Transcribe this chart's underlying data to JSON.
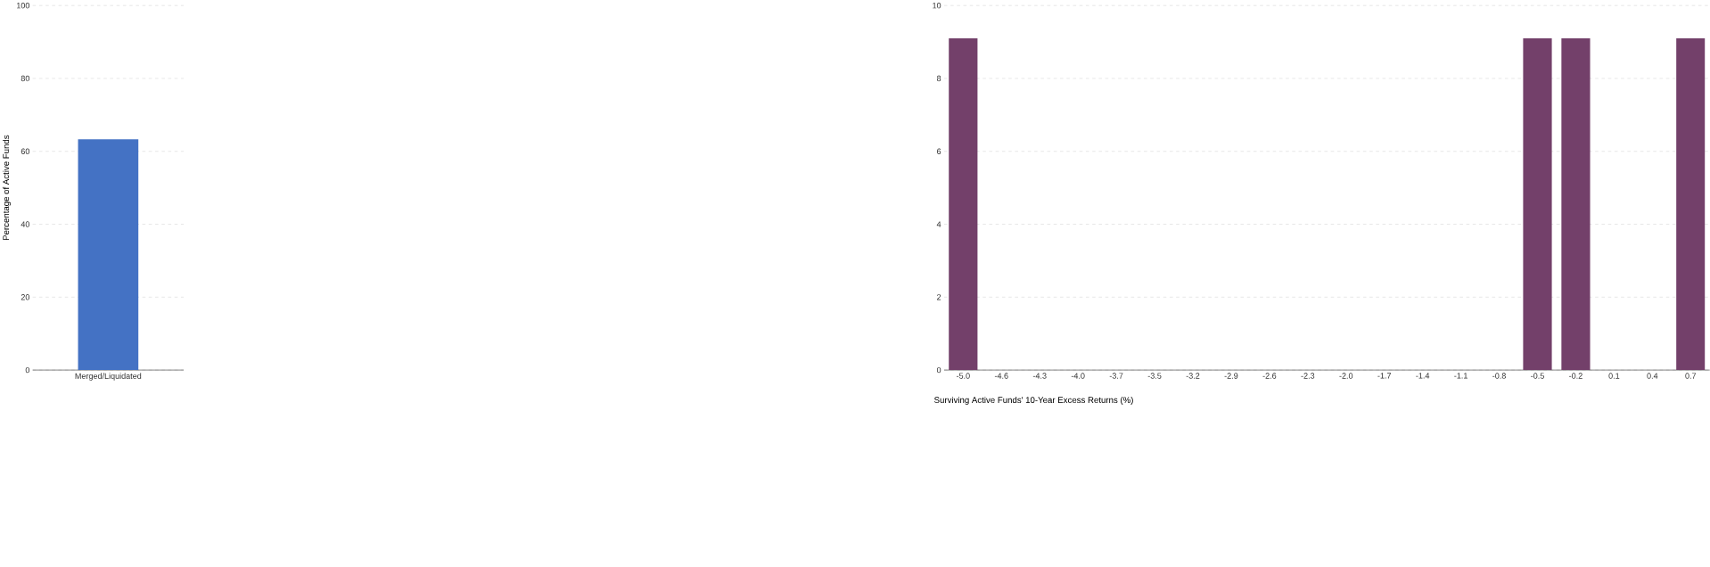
{
  "chart_data": [
    {
      "type": "bar",
      "ylabel": "Percentage of Active Funds",
      "categories": [
        "Merged/Liquidated"
      ],
      "values": [
        63.3
      ],
      "color": "#4472c4",
      "ylim": [
        0,
        100
      ],
      "yticks": [
        0,
        20,
        40,
        60,
        80,
        100
      ],
      "grid": "y"
    },
    {
      "type": "bar",
      "xlabel": "Surviving Active Funds' 10-Year Excess Returns (%)",
      "categories": [
        "-5.0",
        "-4.6",
        "-4.3",
        "-4.0",
        "-3.7",
        "-3.5",
        "-3.2",
        "-2.9",
        "-2.6",
        "-2.3",
        "-2.0",
        "-1.7",
        "-1.4",
        "-1.1",
        "-0.8",
        "-0.5",
        "-0.2",
        "0.1",
        "0.4",
        "0.7"
      ],
      "values": [
        9.1,
        0,
        0,
        0,
        0,
        0,
        0,
        0,
        0,
        0,
        0,
        0,
        0,
        0,
        0,
        9.1,
        9.1,
        0,
        0,
        9.1
      ],
      "color": "#73406a",
      "ylim": [
        0,
        10
      ],
      "yticks": [
        0,
        2,
        4,
        6,
        8,
        10
      ],
      "grid": "y"
    }
  ]
}
